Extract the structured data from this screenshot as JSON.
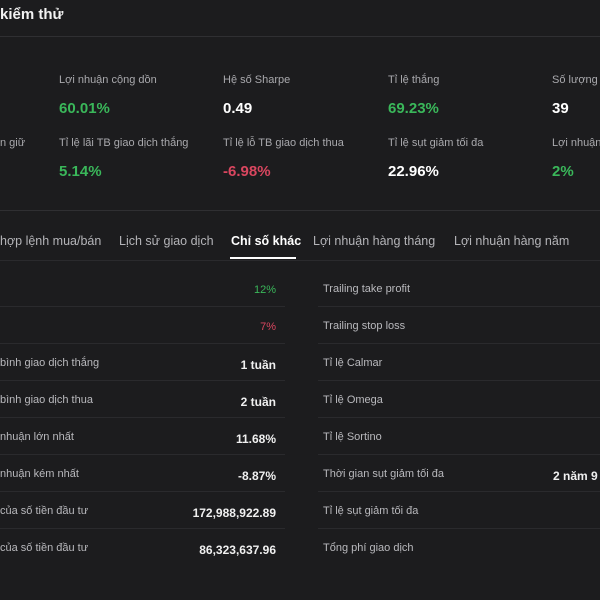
{
  "header": {
    "title": "kiểm thử"
  },
  "metrics": {
    "col1": [
      {
        "label": "",
        "value": ""
      },
      {
        "label": "n giữ",
        "value": ""
      }
    ],
    "col2": [
      {
        "label": "Lợi nhuận cộng dồn",
        "value": "60.01%"
      },
      {
        "label": "Tỉ lệ lãi TB giao dịch thắng",
        "value": "5.14%"
      }
    ],
    "col3": [
      {
        "label": "Hệ số Sharpe",
        "value": "0.49"
      },
      {
        "label": "Tỉ lệ lỗ TB giao dịch thua",
        "value": "-6.98%"
      }
    ],
    "col4": [
      {
        "label": "Tỉ lệ thắng",
        "value": "69.23%"
      },
      {
        "label": "Tỉ lệ sụt giảm tối đa",
        "value": "22.96%"
      }
    ],
    "col5": [
      {
        "label": "Số lượng l",
        "value": "39"
      },
      {
        "label": "Lợi nhuận",
        "value": "2%"
      }
    ]
  },
  "tabs": [
    {
      "label": "hợp lệnh mua/bán"
    },
    {
      "label": "Lịch sử giao dịch"
    },
    {
      "label": "Chỉ số khác"
    },
    {
      "label": "Lợi nhuận hàng tháng"
    },
    {
      "label": "Lợi nhuận hàng năm"
    }
  ],
  "left_rows": [
    {
      "label": "",
      "value": "12%"
    },
    {
      "label": "",
      "value": "7%"
    },
    {
      "label": "bình giao dịch thắng",
      "value": "1 tuần"
    },
    {
      "label": "bình giao dịch thua",
      "value": "2 tuần"
    },
    {
      "label": "nhuận lớn nhất",
      "value": "11.68%"
    },
    {
      "label": "nhuận kém nhất",
      "value": "-8.87%"
    },
    {
      "label": "của số tiền đầu tư",
      "value": "172,988,922.89"
    },
    {
      "label": "của số tiền đầu tư",
      "value": "86,323,637.96"
    }
  ],
  "right_rows": [
    {
      "label": "Trailing take profit",
      "value": ""
    },
    {
      "label": "Trailing stop loss",
      "value": ""
    },
    {
      "label": "Tỉ lệ Calmar",
      "value": ""
    },
    {
      "label": "Tỉ lệ Omega",
      "value": ""
    },
    {
      "label": "Tỉ lệ Sortino",
      "value": ""
    },
    {
      "label": "Thời gian sụt giảm tối đa",
      "value": "2 năm 9"
    },
    {
      "label": "Tỉ lệ sụt giảm tối đa",
      "value": ""
    },
    {
      "label": "Tổng phí giao dịch",
      "value": ""
    }
  ],
  "colors": {
    "background": "#1c1c1e",
    "positive": "#3ab75a",
    "negative": "#d9465f",
    "text": "#ffffff",
    "muted": "#a9a9ad"
  }
}
